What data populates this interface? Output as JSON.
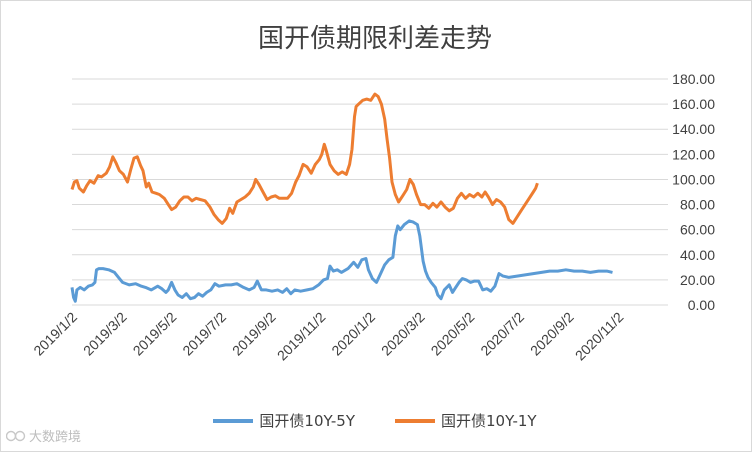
{
  "chart_data": {
    "type": "line",
    "title": "国开债期限利差走势",
    "ylim": [
      0,
      180
    ],
    "yticks": [
      "0.00",
      "20.00",
      "40.00",
      "60.00",
      "80.00",
      "100.00",
      "120.00",
      "140.00",
      "160.00",
      "180.00"
    ],
    "xticks": [
      "2019/1/2",
      "2019/3/2",
      "2019/5/2",
      "2019/7/2",
      "2019/9/2",
      "2019/11/2",
      "2020/1/2",
      "2020/3/2",
      "2020/5/2",
      "2020/7/2",
      "2020/9/2",
      "2020/11/2"
    ],
    "x_domain": [
      0,
      730
    ],
    "series": [
      {
        "name": "国开债10Y-5Y",
        "color": "#5b9bd5",
        "points": [
          [
            0,
            14
          ],
          [
            2,
            6
          ],
          [
            4,
            3
          ],
          [
            6,
            12
          ],
          [
            10,
            14
          ],
          [
            15,
            12
          ],
          [
            20,
            15
          ],
          [
            25,
            16
          ],
          [
            28,
            18
          ],
          [
            30,
            28
          ],
          [
            33,
            29
          ],
          [
            38,
            29
          ],
          [
            45,
            28
          ],
          [
            52,
            26
          ],
          [
            57,
            22
          ],
          [
            62,
            18
          ],
          [
            70,
            16
          ],
          [
            78,
            17
          ],
          [
            85,
            15
          ],
          [
            90,
            14
          ],
          [
            97,
            12
          ],
          [
            105,
            15
          ],
          [
            110,
            13
          ],
          [
            115,
            10
          ],
          [
            118,
            12
          ],
          [
            122,
            18
          ],
          [
            126,
            12
          ],
          [
            130,
            8
          ],
          [
            135,
            6
          ],
          [
            140,
            9
          ],
          [
            145,
            5
          ],
          [
            150,
            6
          ],
          [
            155,
            9
          ],
          [
            160,
            7
          ],
          [
            165,
            10
          ],
          [
            170,
            12
          ],
          [
            175,
            17
          ],
          [
            180,
            15
          ],
          [
            188,
            16
          ],
          [
            195,
            16
          ],
          [
            202,
            17
          ],
          [
            210,
            14
          ],
          [
            217,
            12
          ],
          [
            223,
            14
          ],
          [
            227,
            19
          ],
          [
            232,
            12
          ],
          [
            238,
            12
          ],
          [
            245,
            11
          ],
          [
            252,
            12
          ],
          [
            258,
            10
          ],
          [
            263,
            13
          ],
          [
            268,
            9
          ],
          [
            273,
            12
          ],
          [
            280,
            11
          ],
          [
            288,
            12
          ],
          [
            295,
            13
          ],
          [
            302,
            16
          ],
          [
            308,
            20
          ],
          [
            313,
            21
          ],
          [
            316,
            31
          ],
          [
            320,
            27
          ],
          [
            325,
            28
          ],
          [
            330,
            26
          ],
          [
            338,
            29
          ],
          [
            345,
            34
          ],
          [
            350,
            30
          ],
          [
            355,
            36
          ],
          [
            360,
            37
          ],
          [
            363,
            28
          ],
          [
            368,
            21
          ],
          [
            373,
            18
          ],
          [
            378,
            25
          ],
          [
            383,
            32
          ],
          [
            388,
            36
          ],
          [
            393,
            38
          ],
          [
            396,
            55
          ],
          [
            399,
            63
          ],
          [
            402,
            60
          ],
          [
            407,
            64
          ],
          [
            413,
            67
          ],
          [
            418,
            66
          ],
          [
            423,
            64
          ],
          [
            426,
            55
          ],
          [
            430,
            35
          ],
          [
            433,
            27
          ],
          [
            436,
            22
          ],
          [
            440,
            18
          ],
          [
            445,
            14
          ],
          [
            448,
            8
          ],
          [
            452,
            5
          ],
          [
            456,
            12
          ],
          [
            462,
            16
          ],
          [
            466,
            10
          ],
          [
            470,
            14
          ],
          [
            474,
            18
          ],
          [
            478,
            21
          ],
          [
            483,
            20
          ],
          [
            488,
            18
          ],
          [
            493,
            19
          ],
          [
            498,
            19
          ],
          [
            503,
            12
          ],
          [
            508,
            13
          ],
          [
            513,
            11
          ],
          [
            518,
            15
          ],
          [
            523,
            25
          ],
          [
            528,
            23
          ],
          [
            535,
            22
          ],
          [
            545,
            23
          ],
          [
            555,
            24
          ],
          [
            565,
            25
          ],
          [
            575,
            26
          ],
          [
            585,
            27
          ],
          [
            595,
            27
          ],
          [
            605,
            28
          ],
          [
            615,
            27
          ],
          [
            625,
            27
          ],
          [
            635,
            26
          ],
          [
            645,
            27
          ],
          [
            655,
            27
          ],
          [
            662,
            26
          ]
        ]
      },
      {
        "name": "国开债10Y-1Y",
        "color": "#ed7d31",
        "points": [
          [
            0,
            92
          ],
          [
            3,
            98
          ],
          [
            6,
            99
          ],
          [
            9,
            93
          ],
          [
            14,
            90
          ],
          [
            18,
            95
          ],
          [
            22,
            99
          ],
          [
            27,
            97
          ],
          [
            32,
            103
          ],
          [
            36,
            102
          ],
          [
            42,
            105
          ],
          [
            46,
            110
          ],
          [
            50,
            118
          ],
          [
            54,
            113
          ],
          [
            58,
            107
          ],
          [
            63,
            104
          ],
          [
            68,
            98
          ],
          [
            72,
            108
          ],
          [
            76,
            117
          ],
          [
            80,
            118
          ],
          [
            84,
            111
          ],
          [
            87,
            107
          ],
          [
            91,
            94
          ],
          [
            94,
            97
          ],
          [
            98,
            90
          ],
          [
            103,
            89
          ],
          [
            107,
            88
          ],
          [
            113,
            85
          ],
          [
            118,
            80
          ],
          [
            122,
            76
          ],
          [
            127,
            78
          ],
          [
            132,
            83
          ],
          [
            137,
            86
          ],
          [
            142,
            86
          ],
          [
            147,
            83
          ],
          [
            152,
            85
          ],
          [
            157,
            84
          ],
          [
            163,
            83
          ],
          [
            169,
            78
          ],
          [
            174,
            72
          ],
          [
            179,
            68
          ],
          [
            184,
            65
          ],
          [
            189,
            69
          ],
          [
            193,
            77
          ],
          [
            197,
            73
          ],
          [
            202,
            82
          ],
          [
            207,
            84
          ],
          [
            212,
            86
          ],
          [
            217,
            89
          ],
          [
            222,
            94
          ],
          [
            225,
            100
          ],
          [
            229,
            96
          ],
          [
            234,
            90
          ],
          [
            239,
            84
          ],
          [
            244,
            86
          ],
          [
            249,
            87
          ],
          [
            254,
            85
          ],
          [
            259,
            85
          ],
          [
            264,
            85
          ],
          [
            269,
            89
          ],
          [
            274,
            98
          ],
          [
            278,
            103
          ],
          [
            283,
            112
          ],
          [
            288,
            110
          ],
          [
            293,
            105
          ],
          [
            298,
            112
          ],
          [
            303,
            116
          ],
          [
            306,
            120
          ],
          [
            309,
            128
          ],
          [
            311,
            124
          ],
          [
            316,
            112
          ],
          [
            321,
            107
          ],
          [
            326,
            104
          ],
          [
            331,
            106
          ],
          [
            336,
            104
          ],
          [
            340,
            112
          ],
          [
            343,
            124
          ],
          [
            346,
            150
          ],
          [
            348,
            158
          ],
          [
            351,
            160
          ],
          [
            356,
            163
          ],
          [
            361,
            164
          ],
          [
            366,
            163
          ],
          [
            371,
            168
          ],
          [
            375,
            166
          ],
          [
            379,
            160
          ],
          [
            383,
            148
          ],
          [
            386,
            132
          ],
          [
            389,
            117
          ],
          [
            392,
            98
          ],
          [
            396,
            88
          ],
          [
            400,
            82
          ],
          [
            405,
            87
          ],
          [
            410,
            92
          ],
          [
            414,
            100
          ],
          [
            418,
            96
          ],
          [
            422,
            88
          ],
          [
            427,
            80
          ],
          [
            432,
            80
          ],
          [
            437,
            77
          ],
          [
            442,
            81
          ],
          [
            447,
            78
          ],
          [
            452,
            82
          ],
          [
            457,
            78
          ],
          [
            462,
            75
          ],
          [
            467,
            77
          ],
          [
            472,
            85
          ],
          [
            477,
            89
          ],
          [
            482,
            85
          ],
          [
            487,
            88
          ],
          [
            492,
            86
          ],
          [
            497,
            89
          ],
          [
            502,
            86
          ],
          [
            506,
            90
          ],
          [
            510,
            86
          ],
          [
            515,
            80
          ],
          [
            520,
            84
          ],
          [
            525,
            82
          ],
          [
            530,
            78
          ],
          [
            535,
            68
          ],
          [
            540,
            65
          ],
          [
            545,
            70
          ],
          [
            550,
            75
          ],
          [
            555,
            80
          ],
          [
            560,
            85
          ],
          [
            565,
            90
          ],
          [
            568,
            93
          ],
          [
            570,
            97
          ]
        ]
      }
    ]
  },
  "legend": {
    "s1_label": "国开债10Y-5Y",
    "s2_label": "国开债10Y-1Y"
  },
  "watermark": {
    "text": "大数跨境",
    "color": "#bdbdbd"
  }
}
